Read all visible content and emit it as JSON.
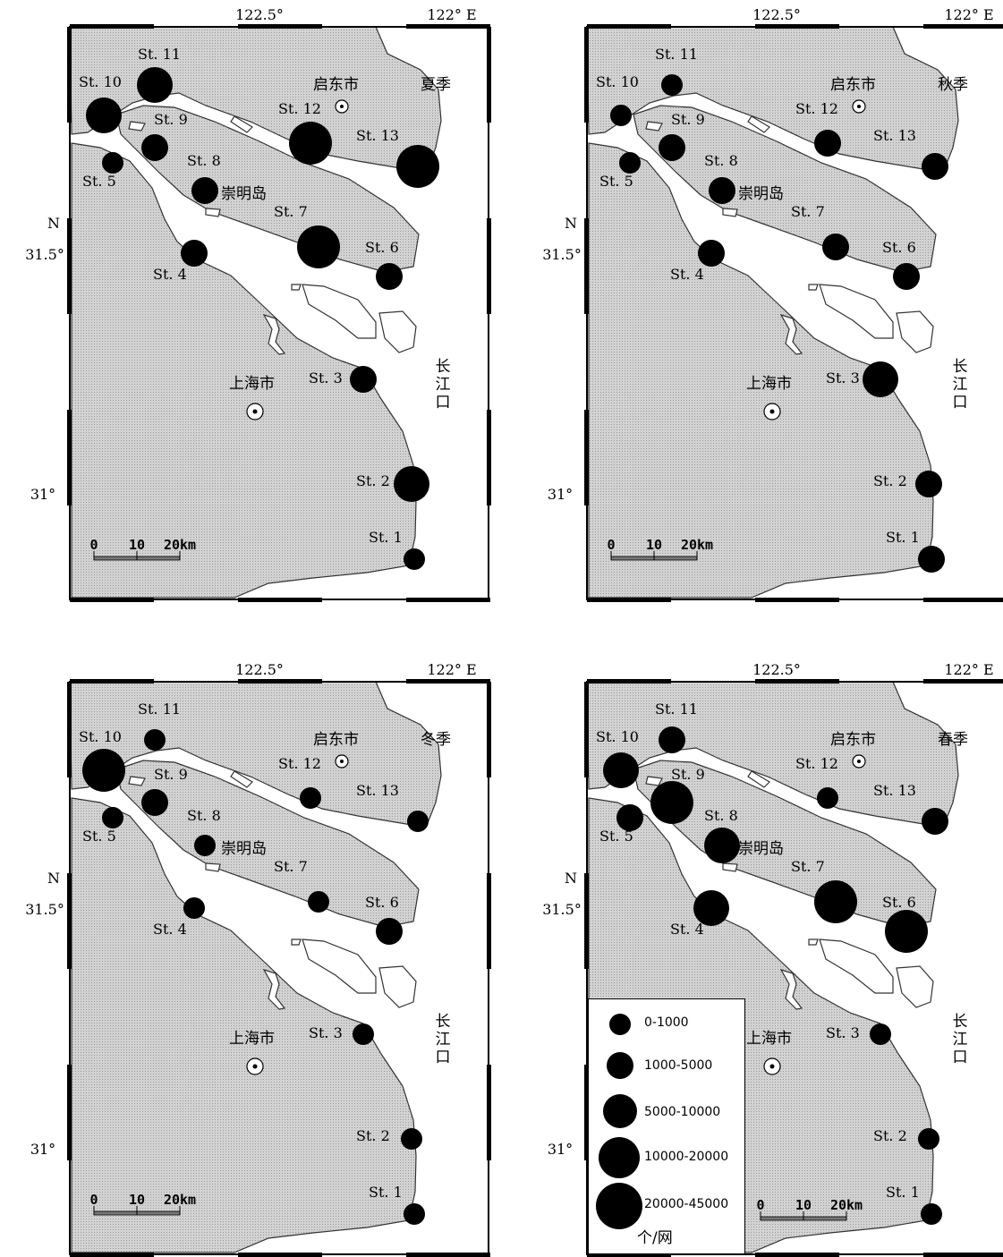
{
  "axes": {
    "lon_ticks": [
      "122.5°",
      "122° E"
    ],
    "lat_ticks": [
      "31.5°",
      "31°"
    ],
    "north_label": "N"
  },
  "places": {
    "qidong": "启东市",
    "shanghai": "上海市",
    "chongming": "崇明岛",
    "estuary": [
      "长",
      "江",
      "口"
    ]
  },
  "scale_bar": [
    "0",
    "10",
    "20km"
  ],
  "stations": [
    "St. 1",
    "St. 2",
    "St. 3",
    "St. 4",
    "St. 5",
    "St. 6",
    "St. 7",
    "St. 8",
    "St. 9",
    "St. 10",
    "St. 11",
    "St. 12",
    "St. 13"
  ],
  "colors": {
    "land": "#d2d2d2",
    "water": "#ffffff",
    "dot": "#000000"
  },
  "panels": [
    {
      "season": "夏季",
      "classes": [
        1,
        3,
        2,
        2,
        1,
        2,
        4,
        2,
        2,
        3,
        3,
        4,
        4
      ]
    },
    {
      "season": "秋季",
      "classes": [
        2,
        2,
        3,
        2,
        1,
        2,
        2,
        2,
        2,
        1,
        1,
        2,
        2
      ]
    },
    {
      "season": "冬季",
      "classes": [
        1,
        1,
        1,
        1,
        1,
        2,
        1,
        1,
        2,
        4,
        1,
        1,
        1
      ]
    },
    {
      "season": "春季",
      "classes": [
        1,
        1,
        1,
        3,
        2,
        4,
        4,
        3,
        4,
        3,
        2,
        1,
        2
      ]
    }
  ],
  "legend": {
    "classes": [
      "0-1000",
      "1000-5000",
      "5000-10000",
      "10000-20000",
      "20000-45000"
    ],
    "unit": "个/网"
  }
}
